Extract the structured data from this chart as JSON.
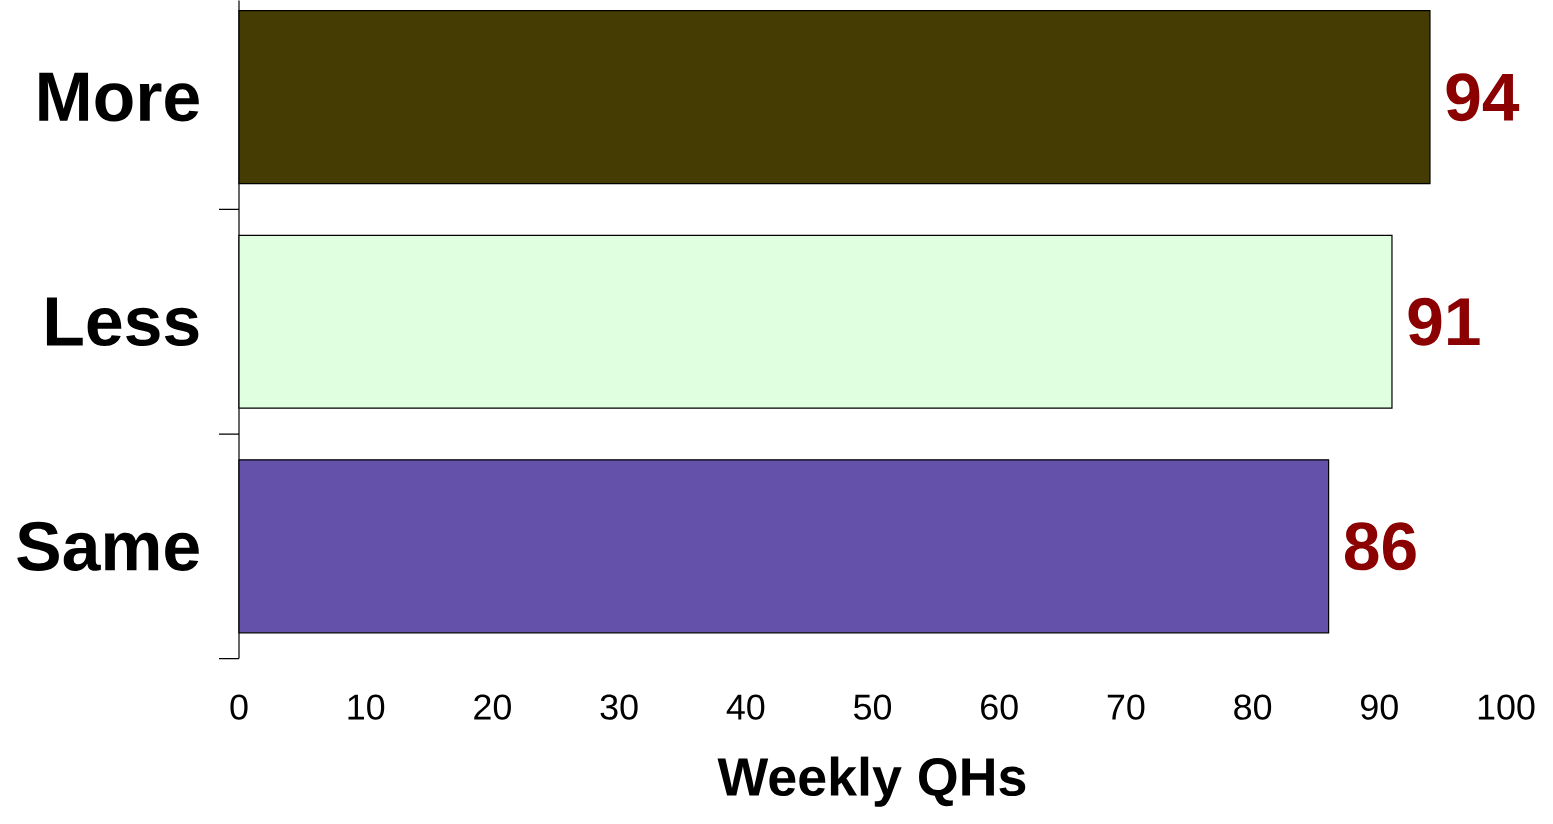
{
  "chart_data": {
    "type": "bar",
    "orientation": "horizontal",
    "xlabel": "Weekly QHs",
    "categories": [
      "More",
      "Less",
      "Same"
    ],
    "values": [
      94,
      91,
      86
    ],
    "colors": [
      "#453c03",
      "#e0ffe0",
      "#6351aa"
    ],
    "data_labels": true,
    "grid": false,
    "legend": false,
    "xlim": [
      0,
      100
    ],
    "xticks": [
      0,
      10,
      20,
      30,
      40,
      50,
      60,
      70,
      80,
      90,
      100
    ]
  }
}
